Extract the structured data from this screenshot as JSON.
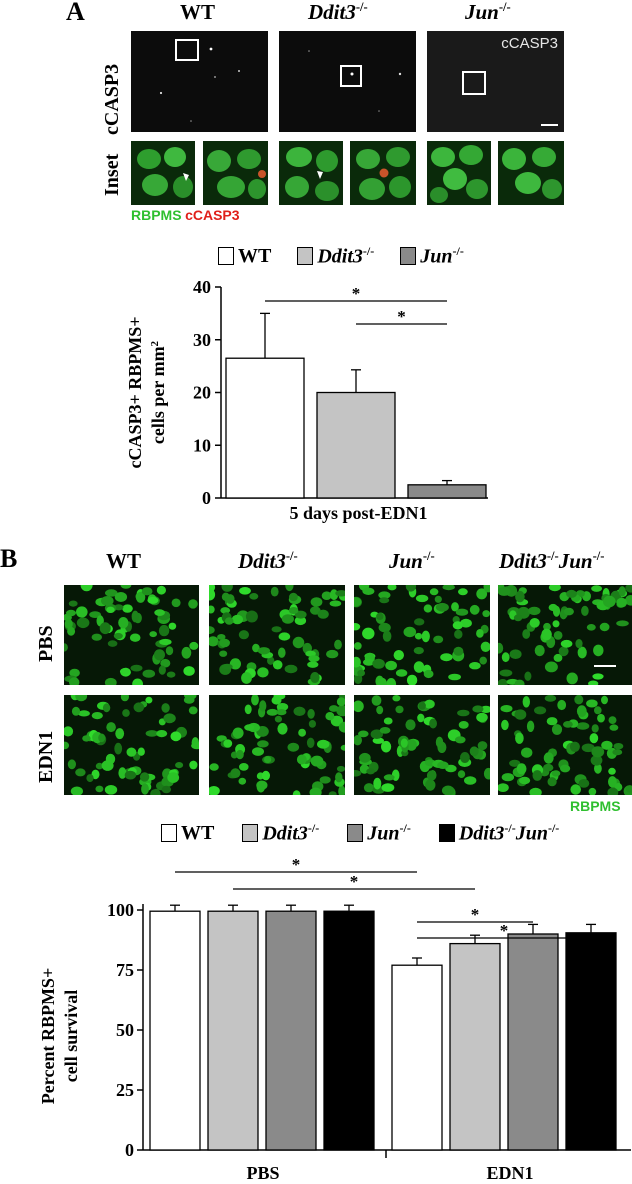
{
  "panelA": {
    "letter": "A",
    "columns": [
      {
        "label": "WT",
        "italic": false
      },
      {
        "label": "Ddit3",
        "sup": "-/-",
        "italic": true
      },
      {
        "label": "Jun",
        "sup": "-/-",
        "italic": true
      }
    ],
    "row_labels": {
      "top": "cCASP3",
      "inset": "Inset"
    },
    "image_label": "cCASP3",
    "stain_green": "RBPMS",
    "stain_red": "cCASP3",
    "legend": [
      {
        "label": "WT",
        "sup": "",
        "color": "#ffffff"
      },
      {
        "label": "Ddit3",
        "sup": "-/-",
        "color": "#c4c4c4"
      },
      {
        "label": "Jun",
        "sup": "-/-",
        "color": "#8a8a8a"
      }
    ],
    "chart_data": {
      "type": "bar",
      "categories": [
        "WT",
        "Ddit3-/-",
        "Jun-/-"
      ],
      "values": [
        26.5,
        20,
        2.5
      ],
      "errors": [
        8.5,
        4.3,
        0.8
      ],
      "colors": [
        "#ffffff",
        "#c4c4c4",
        "#8a8a8a"
      ],
      "ylabel_line1": "cCASP3+ RBPMS+",
      "ylabel_line2": "cells per mm",
      "ylabel_sup": "2",
      "xlabel": "5 days post-EDN1",
      "ylim": [
        0,
        40
      ],
      "yticks": [
        0,
        10,
        20,
        30,
        40
      ],
      "significance": [
        {
          "from": 0,
          "to": 2,
          "label": "*"
        },
        {
          "from": 1,
          "to": 2,
          "label": "*"
        }
      ]
    }
  },
  "panelB": {
    "letter": "B",
    "columns": [
      {
        "label": "WT",
        "italic": false
      },
      {
        "label": "Ddit3",
        "sup": "-/-",
        "italic": true
      },
      {
        "label": "Jun",
        "sup": "-/-",
        "italic": true
      },
      {
        "label": "Ddit3",
        "sup": "-/-",
        "label2": "Jun",
        "sup2": "-/-",
        "italic": true
      }
    ],
    "row_labels": [
      "PBS",
      "EDN1"
    ],
    "stain_green": "RBPMS",
    "legend": [
      {
        "label": "WT",
        "sup": "",
        "color": "#ffffff"
      },
      {
        "label": "Ddit3",
        "sup": "-/-",
        "color": "#c4c4c4"
      },
      {
        "label": "Jun",
        "sup": "-/-",
        "color": "#8a8a8a"
      },
      {
        "label": "Ddit3",
        "sup": "-/-",
        "label2": "Jun",
        "sup2": "-/-",
        "color": "#000000"
      }
    ],
    "chart_data": {
      "type": "bar",
      "groups": [
        "PBS",
        "EDN1"
      ],
      "series": [
        {
          "name": "WT",
          "color": "#ffffff",
          "values": [
            99.5,
            77
          ],
          "errors": [
            2.5,
            3
          ]
        },
        {
          "name": "Ddit3-/-",
          "color": "#c4c4c4",
          "values": [
            99.5,
            86
          ],
          "errors": [
            2.5,
            3.5
          ]
        },
        {
          "name": "Jun-/-",
          "color": "#8a8a8a",
          "values": [
            99.5,
            90
          ],
          "errors": [
            2.5,
            4
          ]
        },
        {
          "name": "Ddit3-/- Jun-/-",
          "color": "#000000",
          "values": [
            99.5,
            90.5
          ],
          "errors": [
            2.5,
            3.5
          ]
        }
      ],
      "ylabel_line1": "Percent RBPMS+",
      "ylabel_line2": "cell survival",
      "ylim": [
        0,
        100
      ],
      "yticks": [
        0,
        25,
        50,
        75,
        100
      ],
      "significance": [
        {
          "from": [
            0,
            0
          ],
          "to": [
            1,
            0
          ],
          "label": "*"
        },
        {
          "from": [
            0,
            1
          ],
          "to": [
            1,
            1
          ],
          "label": "*"
        },
        {
          "from": [
            1,
            0
          ],
          "to": [
            1,
            2
          ],
          "label": "*"
        },
        {
          "from": [
            1,
            0
          ],
          "to": [
            1,
            3
          ],
          "label": "*"
        }
      ]
    }
  }
}
